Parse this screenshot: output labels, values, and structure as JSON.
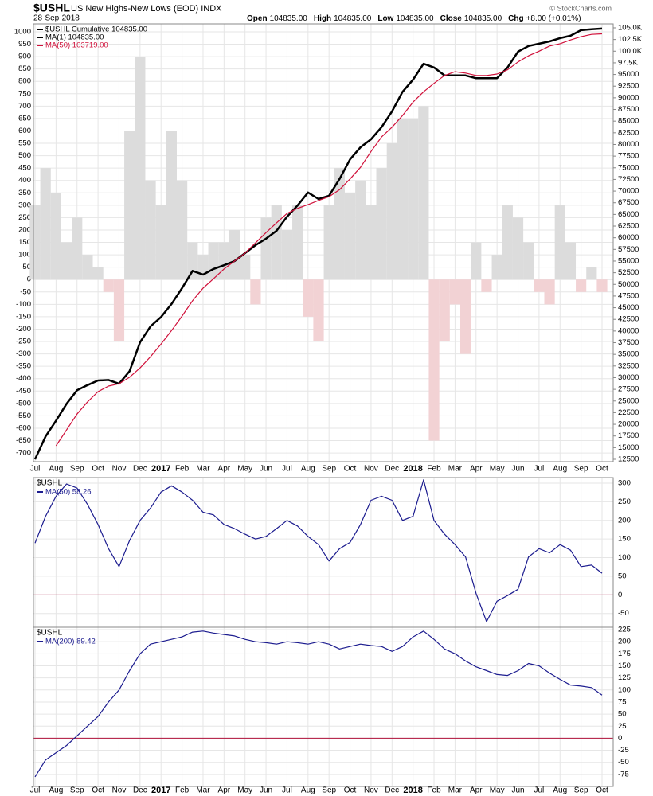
{
  "chart_data": [
    {
      "type": "line",
      "title": "$USHL",
      "subtitle": "US New Highs-New Lows (EOD) INDX",
      "date": "28-Sep-2018",
      "ohlc": [
        {
          "label": "Open",
          "value": "104835.00"
        },
        {
          "label": "High",
          "value": "104835.00"
        },
        {
          "label": "Low",
          "value": "104835.00"
        },
        {
          "label": "Close",
          "value": "104835.00"
        },
        {
          "label": "Chg",
          "value": "+8.00 (+0.01%)"
        }
      ],
      "copyright": "© StockCharts.com",
      "categories": [
        "Jul",
        null,
        "Aug",
        null,
        "Sep",
        null,
        "Oct",
        null,
        "Nov",
        null,
        "Dec",
        null,
        "2017",
        null,
        "Feb",
        null,
        "Mar",
        null,
        "Apr",
        null,
        "May",
        null,
        "Jun",
        null,
        "Jul",
        null,
        "Aug",
        null,
        "Sep",
        null,
        "Oct",
        null,
        "Nov",
        null,
        "Dec",
        null,
        "2018",
        null,
        "Feb",
        null,
        "Mar",
        null,
        "Apr",
        null,
        "May",
        null,
        "Jun",
        null,
        "Jul",
        null,
        "Aug",
        null,
        "Sep",
        null,
        "Oct"
      ],
      "bars": {
        "color": "#dcdcdc",
        "negative_color": "#f2d2d4",
        "values": [
          300,
          450,
          350,
          150,
          250,
          100,
          50,
          -50,
          -250,
          600,
          900,
          400,
          300,
          600,
          400,
          150,
          100,
          150,
          150,
          200,
          100,
          -100,
          250,
          300,
          200,
          300,
          -150,
          -250,
          300,
          450,
          350,
          400,
          300,
          450,
          550,
          650,
          650,
          700,
          -650,
          -250,
          -100,
          -300,
          150,
          -50,
          100,
          300,
          250,
          150,
          -50,
          -100,
          300,
          150,
          -50,
          50,
          -50
        ]
      },
      "series": [
        {
          "name": "$USHL Cumulative 104835.00",
          "color": "#000000",
          "axis": "y2",
          "values": [
            12500,
            17400,
            20800,
            24400,
            27300,
            28400,
            29400,
            29500,
            28700,
            31400,
            37600,
            41000,
            43000,
            45800,
            49200,
            52900,
            52100,
            53300,
            54100,
            55000,
            56700,
            58400,
            59800,
            61500,
            64500,
            66900,
            69700,
            68300,
            69000,
            72600,
            76800,
            79400,
            81100,
            83700,
            87100,
            91300,
            93900,
            97300,
            96500,
            94800,
            94800,
            94800,
            94200,
            94200,
            94200,
            96500,
            99900,
            101100,
            101600,
            102100,
            102800,
            103300,
            104500,
            104700,
            104835
          ]
        },
        {
          "name": "MA(1) 104835.00",
          "color": "#000000",
          "axis": "y2",
          "values": [
            12500,
            17400,
            20800,
            24400,
            27300,
            28400,
            29400,
            29500,
            28700,
            31400,
            37600,
            41000,
            43000,
            45800,
            49200,
            52900,
            52100,
            53300,
            54100,
            55000,
            56700,
            58400,
            59800,
            61500,
            64500,
            66900,
            69700,
            68300,
            69000,
            72600,
            76800,
            79400,
            81100,
            83700,
            87100,
            91300,
            93900,
            97300,
            96500,
            94800,
            94800,
            94800,
            94200,
            94200,
            94200,
            96500,
            99900,
            101100,
            101600,
            102100,
            102800,
            103300,
            104500,
            104700,
            104835
          ]
        },
        {
          "name": "MA(50) 103719.00",
          "color": "#d0103a",
          "axis": "y2",
          "values": [
            null,
            null,
            15400,
            18800,
            22200,
            24800,
            27000,
            28200,
            28700,
            30100,
            32100,
            34500,
            37200,
            40100,
            43200,
            46500,
            49200,
            51200,
            53300,
            55000,
            56700,
            58900,
            61100,
            63200,
            65200,
            66300,
            67100,
            68000,
            68800,
            70300,
            72600,
            75100,
            78500,
            81600,
            83700,
            86200,
            89100,
            91300,
            93100,
            94800,
            95600,
            95300,
            94800,
            94800,
            95100,
            96000,
            97700,
            99000,
            100000,
            101100,
            101600,
            102400,
            103100,
            103600,
            103719
          ]
        }
      ],
      "ylim": [
        -735,
        1032
      ],
      "yticks": [
        -700,
        -650,
        -600,
        -550,
        -500,
        -450,
        -400,
        -350,
        -300,
        -250,
        -200,
        -150,
        -100,
        -50,
        0,
        50,
        100,
        150,
        200,
        250,
        300,
        350,
        400,
        450,
        500,
        550,
        600,
        650,
        700,
        750,
        800,
        850,
        900,
        950,
        1000
      ],
      "y2lim": [
        11990,
        105850
      ],
      "y2ticks": [
        12500,
        15000,
        17500,
        20000,
        22500,
        25000,
        27500,
        30000,
        32500,
        35000,
        37500,
        40000,
        42500,
        45000,
        47500,
        50000,
        52500,
        55000,
        57500,
        60000,
        62500,
        65000,
        67500,
        70000,
        72500,
        75000,
        77500,
        80000,
        82500,
        85000,
        87500,
        90000,
        92500,
        95000,
        {
          "value": 97500,
          "label": "97.5K"
        },
        {
          "value": 100000,
          "label": "100.0K"
        },
        {
          "value": 102500,
          "label": "102.5K"
        },
        {
          "value": 105000,
          "label": "105.0K"
        }
      ],
      "grid": true
    },
    {
      "type": "line",
      "title": "$USHL",
      "series": [
        {
          "name": "MA(50) 58.26",
          "color": "#1c1c8f",
          "values": [
            139,
            211,
            265,
            298,
            287,
            243,
            189,
            124,
            76,
            146,
            200,
            233,
            276,
            293,
            276,
            254,
            222,
            215,
            189,
            178,
            163,
            150,
            157,
            178,
            200,
            185,
            157,
            135,
            91,
            124,
            141,
            189,
            254,
            265,
            254,
            200,
            211,
            309,
            200,
            163,
            135,
            102,
            4,
            -72,
            -17,
            -2,
            15,
            102,
            124,
            113,
            135,
            120,
            76,
            80,
            58.26
          ]
        }
      ],
      "ylim": [
        -87,
        315
      ],
      "yticks": [
        -50,
        0,
        50,
        100,
        150,
        200,
        250,
        300
      ],
      "grid": true
    },
    {
      "type": "line",
      "title": "$USHL",
      "categories": [
        "Jul",
        null,
        "Aug",
        null,
        "Sep",
        null,
        "Oct",
        null,
        "Nov",
        null,
        "Dec",
        null,
        "2017",
        null,
        "Feb",
        null,
        "Mar",
        null,
        "Apr",
        null,
        "May",
        null,
        "Jun",
        null,
        "Jul",
        null,
        "Aug",
        null,
        "Sep",
        null,
        "Oct",
        null,
        "Nov",
        null,
        "Dec",
        null,
        "2018",
        null,
        "Feb",
        null,
        "Mar",
        null,
        "Apr",
        null,
        "May",
        null,
        "Jun",
        null,
        "Jul",
        null,
        "Aug",
        null,
        "Sep",
        null,
        "Oct"
      ],
      "series": [
        {
          "name": "MA(200) 89.42",
          "color": "#1c1c8f",
          "values": [
            -80,
            -45,
            -30,
            -15,
            5,
            25,
            45,
            75,
            100,
            140,
            175,
            195,
            200,
            205,
            210,
            220,
            222,
            218,
            215,
            212,
            205,
            200,
            198,
            195,
            200,
            198,
            195,
            200,
            195,
            185,
            190,
            195,
            192,
            190,
            180,
            190,
            210,
            222,
            205,
            185,
            175,
            160,
            148,
            140,
            132,
            130,
            140,
            155,
            150,
            135,
            122,
            110,
            108,
            105,
            89.42
          ]
        }
      ],
      "ylim": [
        -100,
        230
      ],
      "yticks": [
        -75,
        -50,
        -25,
        0,
        25,
        50,
        75,
        100,
        125,
        150,
        175,
        200,
        225
      ],
      "grid": true
    }
  ]
}
